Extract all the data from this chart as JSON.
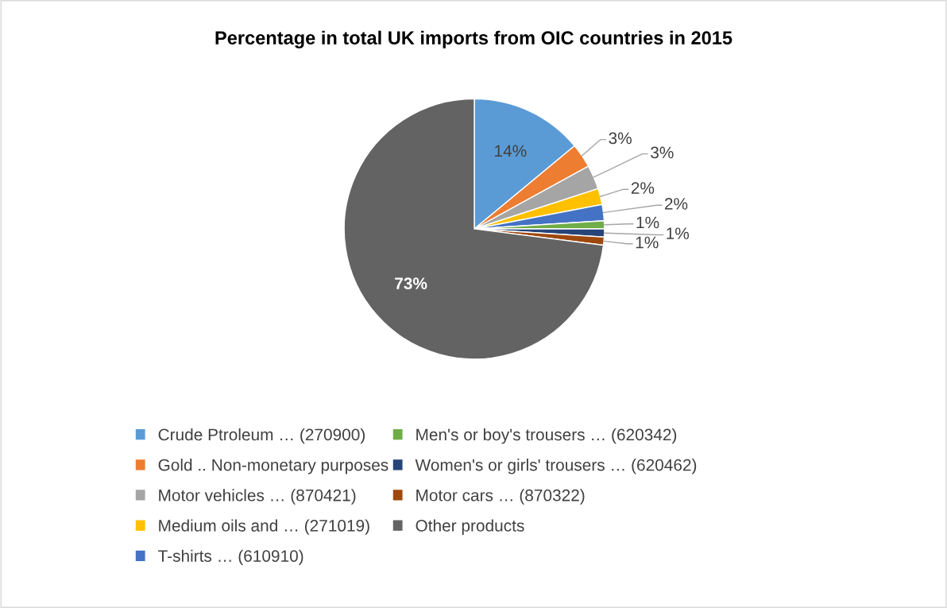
{
  "chart_data": {
    "type": "pie",
    "title": "Percentage in total UK imports from OIC countries in 2015",
    "categories": [
      "Crude Ptroleum … (270900)",
      "Gold .. Non-monetary purposes",
      "Motor vehicles … (870421)",
      "Medium oils and … (271019)",
      "T-shirts … (610910)",
      "Men's or boy's trousers … (620342)",
      "Women's or girls' trousers … (620462)",
      "Motor cars … (870322)",
      "Other products"
    ],
    "values": [
      14,
      3,
      3,
      2,
      2,
      1,
      1,
      1,
      73
    ],
    "colors": [
      "#5b9bd5",
      "#ed7d31",
      "#a5a5a5",
      "#ffc000",
      "#4472c4",
      "#70ad47",
      "#264478",
      "#9e480e",
      "#636363"
    ],
    "value_labels": [
      "14%",
      "3%",
      "3%",
      "2%",
      "2%",
      "1%",
      "1%",
      "1%",
      "73%"
    ],
    "legend": "bottom"
  }
}
